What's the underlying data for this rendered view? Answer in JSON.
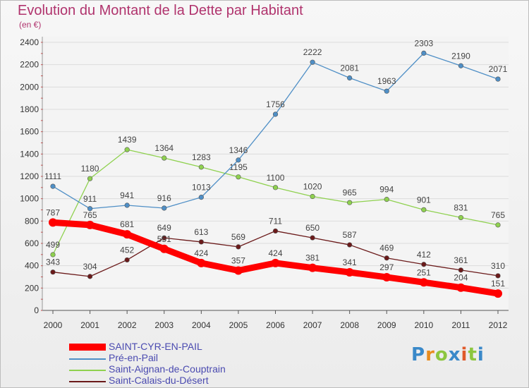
{
  "title": "Evolution du Montant de la Dette par Habitant",
  "unit_label": "(en €)",
  "logo_text": "Proxiti",
  "chart_data": {
    "type": "line",
    "categories": [
      "2000",
      "2001",
      "2002",
      "2003",
      "2004",
      "2005",
      "2006",
      "2007",
      "2008",
      "2009",
      "2010",
      "2011",
      "2012"
    ],
    "ylim": [
      0,
      2400
    ],
    "yticks": [
      0,
      200,
      400,
      600,
      800,
      1000,
      1200,
      1400,
      1600,
      1800,
      2000,
      2200,
      2400
    ],
    "grid": true,
    "legend_position": "bottom-left",
    "series": [
      {
        "name": "SAINT-CYR-EN-PAIL",
        "color": "#ff0000",
        "values": [
          787,
          765,
          681,
          551,
          424,
          357,
          424,
          381,
          341,
          297,
          251,
          204,
          151
        ]
      },
      {
        "name": "Pré-en-Pail",
        "color": "#4f8fc6",
        "values": [
          1111,
          911,
          941,
          916,
          1013,
          1346,
          1756,
          2222,
          2081,
          1963,
          2303,
          2190,
          2071
        ]
      },
      {
        "name": "Saint-Aignan-de-Couptrain",
        "color": "#8fd14f",
        "values": [
          499,
          1180,
          1439,
          1364,
          1283,
          1195,
          1100,
          1020,
          965,
          994,
          901,
          831,
          765
        ]
      },
      {
        "name": "Saint-Calais-du-Désert",
        "color": "#6b1a1a",
        "values": [
          343,
          304,
          452,
          649,
          613,
          569,
          711,
          650,
          587,
          469,
          412,
          361,
          310
        ]
      }
    ]
  }
}
